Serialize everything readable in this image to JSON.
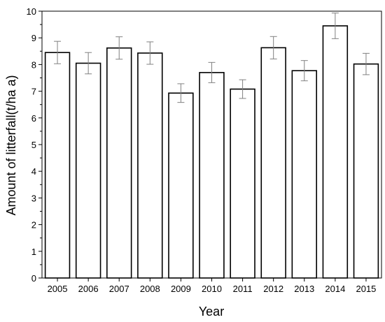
{
  "chart_data": {
    "type": "bar",
    "xlabel": "Year",
    "ylabel": "Amount of litterfall(t/ha a)",
    "ylim": [
      0,
      10
    ],
    "yticks": [
      "0",
      "1",
      "2",
      "3",
      "4",
      "5",
      "6",
      "7",
      "8",
      "9",
      "10"
    ],
    "categories": [
      "2005",
      "2006",
      "2007",
      "2008",
      "2009",
      "2010",
      "2011",
      "2012",
      "2013",
      "2014",
      "2015"
    ],
    "values": [
      8.45,
      8.05,
      8.62,
      8.43,
      6.93,
      7.7,
      7.08,
      8.63,
      7.77,
      9.45,
      8.02
    ],
    "errors": [
      0.42,
      0.4,
      0.42,
      0.42,
      0.35,
      0.38,
      0.35,
      0.42,
      0.38,
      0.48,
      0.4
    ],
    "grid": false,
    "legend": "none",
    "colors": {
      "bar_fill": "#ffffff",
      "bar_stroke": "#000000",
      "error_bar": "#808080"
    }
  }
}
